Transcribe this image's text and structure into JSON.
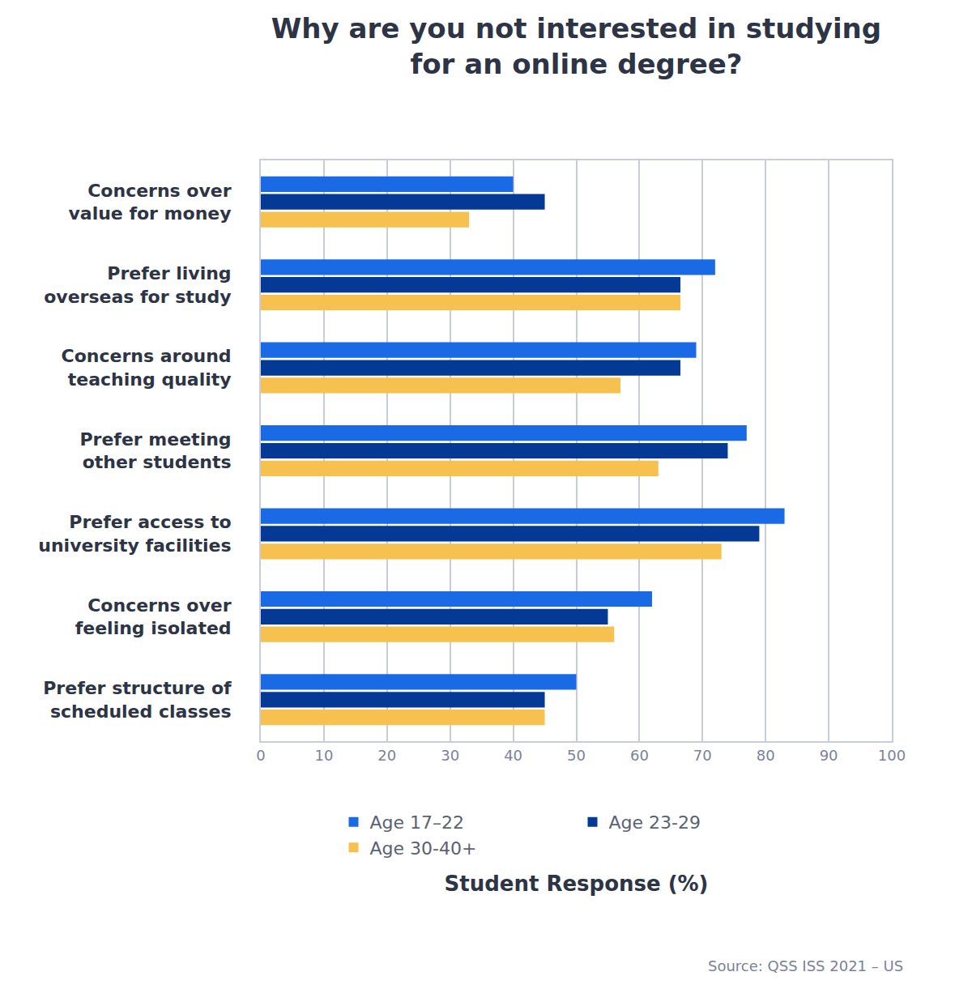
{
  "chart_data": {
    "type": "bar",
    "title": "Why are you not interested in studying\nfor an online degree?",
    "orientation": "horizontal",
    "categories": [
      "Concerns over\nvalue for money",
      "Prefer living\noverseas for study",
      "Concerns around\nteaching quality",
      "Prefer meeting\nother students",
      "Prefer access to\nuniversity facilities",
      "Concerns over\nfeeling isolated",
      "Prefer structure of\nscheduled classes"
    ],
    "series": [
      {
        "name": "Age 17–22",
        "color": "#1a6ae6",
        "values": [
          40,
          72,
          69,
          77,
          83,
          62,
          50
        ]
      },
      {
        "name": "Age 23-29",
        "color": "#043a96",
        "values": [
          45,
          66.5,
          66.5,
          74,
          79,
          55,
          45
        ]
      },
      {
        "name": "Age 30-40+",
        "color": "#f6c14f",
        "values": [
          33,
          66.5,
          57,
          63,
          73,
          56,
          45
        ]
      }
    ],
    "x_label": "Student Response (%)",
    "xlim": [
      0,
      100
    ],
    "xticks": [
      0,
      10,
      20,
      30,
      40,
      50,
      60,
      70,
      80,
      90,
      100
    ],
    "grid": true,
    "legend": "bottom",
    "source": "Source: QSS ISS 2021 – US"
  }
}
